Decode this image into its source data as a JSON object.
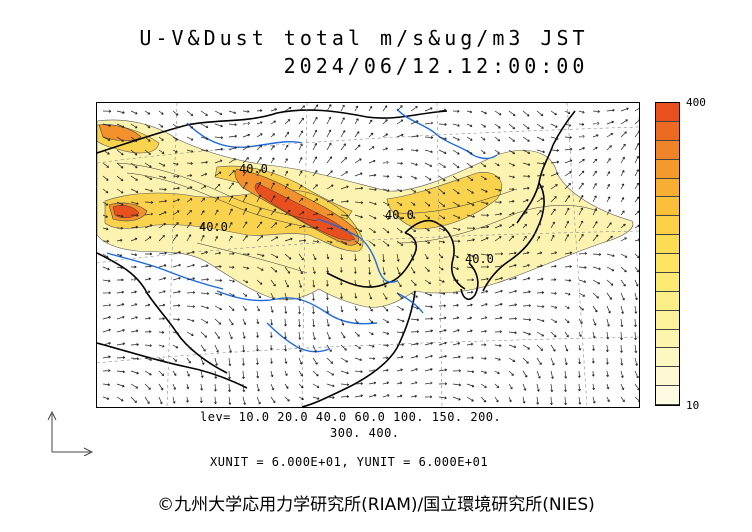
{
  "header": {
    "title_line1": "U-V&Dust total m/s&ug/m3 JST",
    "title_line2": "2024/06/12.12:00:00"
  },
  "colorbar": {
    "max_label": "400",
    "min_label": "10",
    "colors": [
      "#e8501e",
      "#ec6a22",
      "#f08428",
      "#f49a2c",
      "#f7ae32",
      "#fac03a",
      "#fbd044",
      "#fcdc52",
      "#fde462",
      "#fdea72",
      "#fdef86",
      "#fdf29a",
      "#fdf5ae",
      "#fdf7c2",
      "#fef9d2",
      "#fefbe2"
    ]
  },
  "map": {
    "contour_labels": [
      "40.0",
      "40.0",
      "40.0",
      "40.0"
    ],
    "colors": {
      "land_border": "#000000",
      "river": "#1e6be0",
      "dust_high": "#e8501e",
      "dust_mid": "#f8c23c",
      "dust_low": "#fdf3b0"
    }
  },
  "legend": {
    "levels_line1": "lev= 10.0 20.0 40.0 60.0 100. 150. 200.",
    "levels_line2": "300. 400."
  },
  "units": {
    "text": "XUNIT = 6.000E+01, YUNIT = 6.000E+01"
  },
  "footer": {
    "copyright": "©九州大学応用力学研究所(RIAM)/国立環境研究所(NIES)"
  }
}
